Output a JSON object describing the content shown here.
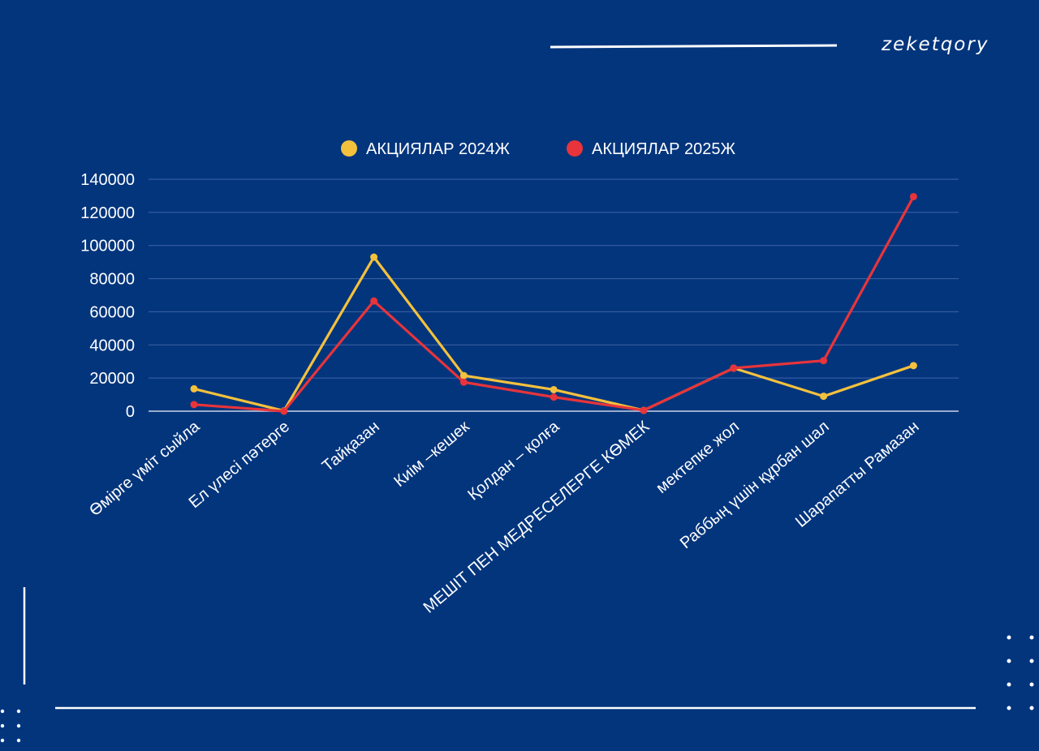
{
  "brand": "zeketqory",
  "colors": {
    "background": "#03357d",
    "series_2024": "#f4c13d",
    "series_2025": "#e8343a",
    "grid": "#3f65a6",
    "text": "#ffffff"
  },
  "chart_data": {
    "type": "line",
    "title": "",
    "xlabel": "",
    "ylabel": "",
    "categories": [
      "Өмірге үміт сыйла",
      "Ел үлесі пәтерге",
      "Тайқазан",
      "Киім –кешек",
      "Қолдан – қолға",
      "МЕШІТ ПЕН МЕДРЕСЕЛЕРГЕ КӨМЕК",
      "мектепке жол",
      "Раббың үшін құрбан шал",
      "Шарапатты Рамазан"
    ],
    "series": [
      {
        "name": "АКЦИЯЛАР 2024Ж",
        "color": "#f4c13d",
        "values": [
          13500,
          200,
          93000,
          21500,
          13000,
          500,
          26000,
          9000,
          27500
        ]
      },
      {
        "name": "АКЦИЯЛАР 2025Ж",
        "color": "#e8343a",
        "values": [
          4000,
          0,
          66500,
          17500,
          8500,
          500,
          26000,
          30500,
          129500
        ]
      }
    ],
    "yticks": [
      "0",
      "20000",
      "40000",
      "60000",
      "80000",
      "100000",
      "120000",
      "140000"
    ],
    "ylim": [
      0,
      140000
    ],
    "grid": true,
    "legend_position": "top-center"
  }
}
